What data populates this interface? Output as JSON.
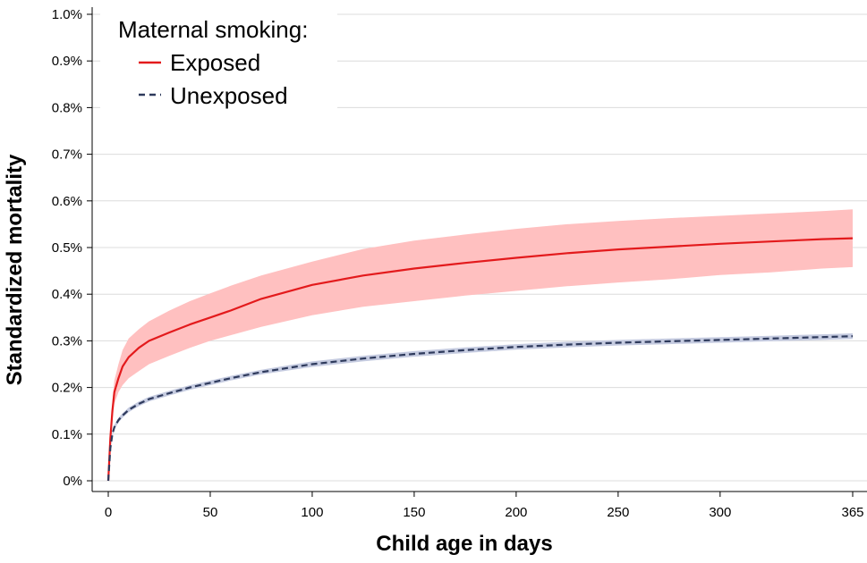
{
  "chart_data": {
    "type": "line",
    "title": "",
    "xlabel": "Child age in days",
    "ylabel": "Standardized mortality",
    "xlim": [
      0,
      365
    ],
    "ylim": [
      0,
      1.0
    ],
    "x_ticks": [
      0,
      50,
      100,
      150,
      200,
      250,
      300,
      365
    ],
    "x_tick_labels": [
      "0",
      "50",
      "100",
      "150",
      "200",
      "250",
      "300",
      "365"
    ],
    "y_ticks": [
      0,
      0.1,
      0.2,
      0.3,
      0.4,
      0.5,
      0.6,
      0.7,
      0.8,
      0.9,
      1.0
    ],
    "y_tick_labels": [
      "0%",
      "0.1%",
      "0.2%",
      "0.3%",
      "0.4%",
      "0.5%",
      "0.6%",
      "0.7%",
      "0.8%",
      "0.9%",
      "1.0%"
    ],
    "grid": "horizontal",
    "legend": {
      "title": "Maternal smoking:",
      "placement": "top-left"
    },
    "x": [
      0,
      1,
      2,
      3,
      5,
      7,
      10,
      15,
      20,
      30,
      40,
      50,
      60,
      75,
      100,
      125,
      150,
      175,
      200,
      225,
      250,
      275,
      300,
      325,
      350,
      365
    ],
    "series": [
      {
        "name": "Exposed",
        "color": "#e31a1c",
        "style": "solid",
        "values": [
          0,
          0.09,
          0.15,
          0.19,
          0.22,
          0.245,
          0.265,
          0.285,
          0.3,
          0.318,
          0.335,
          0.35,
          0.365,
          0.39,
          0.42,
          0.44,
          0.455,
          0.467,
          0.478,
          0.488,
          0.496,
          0.502,
          0.508,
          0.513,
          0.518,
          0.52
        ],
        "ci_lower": [
          0,
          0.08,
          0.13,
          0.165,
          0.19,
          0.205,
          0.22,
          0.235,
          0.25,
          0.268,
          0.285,
          0.3,
          0.312,
          0.33,
          0.355,
          0.373,
          0.385,
          0.397,
          0.407,
          0.417,
          0.425,
          0.432,
          0.441,
          0.447,
          0.455,
          0.458
        ],
        "ci_upper": [
          0,
          0.1,
          0.17,
          0.215,
          0.25,
          0.28,
          0.305,
          0.325,
          0.342,
          0.365,
          0.385,
          0.402,
          0.418,
          0.44,
          0.47,
          0.497,
          0.515,
          0.528,
          0.54,
          0.55,
          0.557,
          0.563,
          0.568,
          0.573,
          0.578,
          0.582
        ],
        "band_color": "#ffc0c0"
      },
      {
        "name": "Unexposed",
        "color": "#2e3a5c",
        "style": "dashed",
        "values": [
          0,
          0.07,
          0.1,
          0.115,
          0.13,
          0.14,
          0.152,
          0.165,
          0.175,
          0.188,
          0.2,
          0.21,
          0.22,
          0.233,
          0.25,
          0.262,
          0.272,
          0.28,
          0.287,
          0.292,
          0.296,
          0.299,
          0.302,
          0.305,
          0.308,
          0.31
        ],
        "ci_lower": [
          0,
          0.066,
          0.095,
          0.11,
          0.125,
          0.135,
          0.147,
          0.16,
          0.17,
          0.183,
          0.195,
          0.205,
          0.215,
          0.228,
          0.244,
          0.256,
          0.266,
          0.274,
          0.281,
          0.286,
          0.29,
          0.293,
          0.296,
          0.299,
          0.302,
          0.304
        ],
        "ci_upper": [
          0,
          0.074,
          0.105,
          0.12,
          0.135,
          0.145,
          0.157,
          0.17,
          0.18,
          0.193,
          0.205,
          0.215,
          0.225,
          0.238,
          0.256,
          0.268,
          0.278,
          0.286,
          0.293,
          0.298,
          0.302,
          0.305,
          0.308,
          0.311,
          0.314,
          0.316
        ],
        "band_color": "#c5cbe0"
      }
    ]
  }
}
